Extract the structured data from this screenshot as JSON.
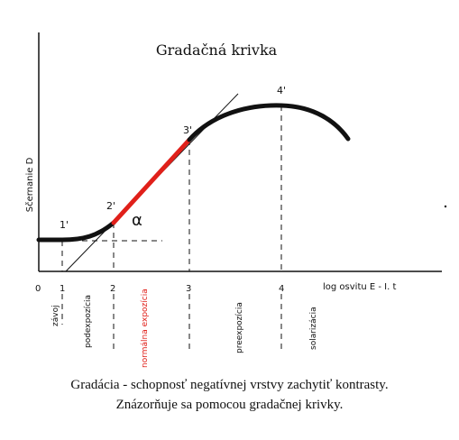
{
  "title": "Gradačná krivka",
  "axes": {
    "y_label": "Sčernanie D",
    "x_label": "log osvitu  E - I. t",
    "x_ticks": [
      "0",
      "1",
      "2",
      "3",
      "4"
    ]
  },
  "points": [
    "1'",
    "2'",
    "3'",
    "4'"
  ],
  "alpha": "α",
  "zones": [
    "závoj",
    "podexpozícia",
    "normálna expozícia",
    "preexpozícia",
    "solarizácia"
  ],
  "colors": {
    "curve": "#111111",
    "highlight": "#e0201a",
    "zone_highlight": "#e0201a"
  },
  "caption": {
    "line1": "Gradácia - schopnosť negatívnej vrstvy zachytiť kontrasty.",
    "line2": "Znázorňuje sa pomocou gradačnej krivky."
  }
}
